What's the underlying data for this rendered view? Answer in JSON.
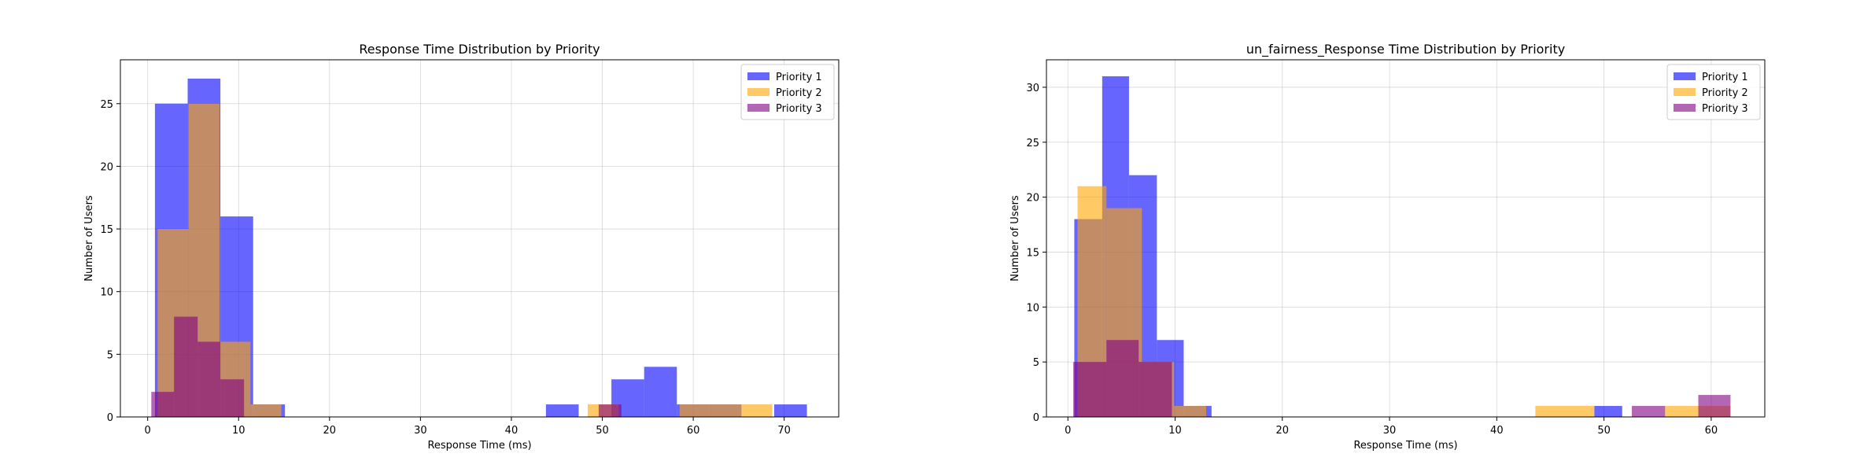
{
  "chart_data": [
    {
      "type": "bar",
      "title": "Response Time Distribution by Priority",
      "xlabel": "Response Time (ms)",
      "ylabel": "Number of Users",
      "xlim": [
        -3,
        76
      ],
      "ylim": [
        0,
        28.5
      ],
      "xticks": [
        0,
        10,
        20,
        30,
        40,
        50,
        60,
        70
      ],
      "yticks": [
        0,
        5,
        10,
        15,
        20,
        25
      ],
      "grid": true,
      "legend_position": "top-right",
      "series": [
        {
          "name": "Priority 1",
          "color": "#0000ff",
          "opacity": 0.6,
          "bins": [
            {
              "x0": 0.8,
              "x1": 4.4,
              "count": 25
            },
            {
              "x0": 4.4,
              "x1": 8.0,
              "count": 27
            },
            {
              "x0": 8.0,
              "x1": 11.6,
              "count": 16
            },
            {
              "x0": 11.6,
              "x1": 15.1,
              "count": 1
            },
            {
              "x0": 43.8,
              "x1": 47.4,
              "count": 1
            },
            {
              "x0": 51.0,
              "x1": 54.6,
              "count": 3
            },
            {
              "x0": 54.6,
              "x1": 58.2,
              "count": 4
            },
            {
              "x0": 58.2,
              "x1": 61.8,
              "count": 1
            },
            {
              "x0": 61.8,
              "x1": 65.3,
              "count": 1
            },
            {
              "x0": 68.9,
              "x1": 72.5,
              "count": 1
            }
          ]
        },
        {
          "name": "Priority 2",
          "color": "#ffa500",
          "opacity": 0.6,
          "bins": [
            {
              "x0": 1.1,
              "x1": 4.5,
              "count": 15
            },
            {
              "x0": 4.5,
              "x1": 7.9,
              "count": 25
            },
            {
              "x0": 7.9,
              "x1": 11.3,
              "count": 6
            },
            {
              "x0": 11.3,
              "x1": 14.7,
              "count": 1
            },
            {
              "x0": 48.4,
              "x1": 51.8,
              "count": 1
            },
            {
              "x0": 58.5,
              "x1": 61.9,
              "count": 1
            },
            {
              "x0": 61.9,
              "x1": 65.3,
              "count": 1
            },
            {
              "x0": 65.3,
              "x1": 68.7,
              "count": 1
            }
          ]
        },
        {
          "name": "Priority 3",
          "color": "#800080",
          "opacity": 0.6,
          "bins": [
            {
              "x0": 0.4,
              "x1": 2.9,
              "count": 2
            },
            {
              "x0": 2.9,
              "x1": 5.5,
              "count": 8
            },
            {
              "x0": 5.5,
              "x1": 8.0,
              "count": 6
            },
            {
              "x0": 8.0,
              "x1": 10.6,
              "count": 3
            },
            {
              "x0": 49.6,
              "x1": 52.1,
              "count": 1
            }
          ]
        }
      ]
    },
    {
      "type": "bar",
      "title": "un_fairness_Response Time Distribution by Priority",
      "xlabel": "Response Time (ms)",
      "ylabel": "Number of Users",
      "xlim": [
        -2,
        65
      ],
      "ylim": [
        0,
        32.5
      ],
      "xticks": [
        0,
        10,
        20,
        30,
        40,
        50,
        60
      ],
      "yticks": [
        0,
        5,
        10,
        15,
        20,
        25,
        30
      ],
      "grid": true,
      "legend_position": "top-right",
      "series": [
        {
          "name": "Priority 1",
          "color": "#0000ff",
          "opacity": 0.6,
          "bins": [
            {
              "x0": 0.6,
              "x1": 3.2,
              "count": 18
            },
            {
              "x0": 3.2,
              "x1": 5.7,
              "count": 31
            },
            {
              "x0": 5.7,
              "x1": 8.3,
              "count": 22
            },
            {
              "x0": 8.3,
              "x1": 10.8,
              "count": 7
            },
            {
              "x0": 10.8,
              "x1": 13.4,
              "count": 1
            },
            {
              "x0": 49.1,
              "x1": 51.7,
              "count": 1
            }
          ]
        },
        {
          "name": "Priority 2",
          "color": "#ffa500",
          "opacity": 0.6,
          "bins": [
            {
              "x0": 0.9,
              "x1": 3.6,
              "count": 21
            },
            {
              "x0": 3.6,
              "x1": 6.9,
              "count": 19
            },
            {
              "x0": 6.9,
              "x1": 9.9,
              "count": 5
            },
            {
              "x0": 9.9,
              "x1": 12.9,
              "count": 1
            },
            {
              "x0": 43.6,
              "x1": 49.1,
              "count": 1
            },
            {
              "x0": 55.7,
              "x1": 58.8,
              "count": 1
            },
            {
              "x0": 58.8,
              "x1": 61.8,
              "count": 1
            }
          ]
        },
        {
          "name": "Priority 3",
          "color": "#800080",
          "opacity": 0.6,
          "bins": [
            {
              "x0": 0.5,
              "x1": 3.6,
              "count": 5
            },
            {
              "x0": 3.6,
              "x1": 6.6,
              "count": 7
            },
            {
              "x0": 6.6,
              "x1": 9.7,
              "count": 5
            },
            {
              "x0": 52.6,
              "x1": 55.7,
              "count": 1
            },
            {
              "x0": 58.8,
              "x1": 61.8,
              "count": 2
            }
          ]
        }
      ]
    }
  ]
}
